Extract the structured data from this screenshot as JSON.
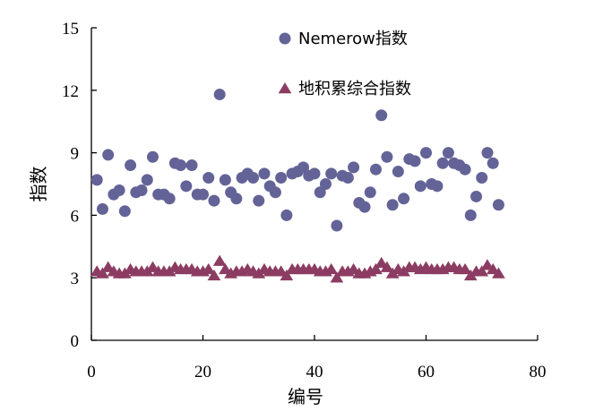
{
  "chart_data": {
    "type": "scatter",
    "xlabel": "编号",
    "ylabel": "指数",
    "xlim": [
      0,
      80
    ],
    "ylim": [
      0,
      15
    ],
    "xticks": [
      0,
      20,
      40,
      60,
      80
    ],
    "yticks": [
      0,
      3,
      6,
      9,
      12,
      15
    ],
    "grid": false,
    "legend_position": "top-right",
    "series": [
      {
        "name": "Nemerow指数",
        "color": "#636397",
        "marker": "circle",
        "x": [
          1,
          2,
          3,
          4,
          5,
          6,
          7,
          8,
          9,
          10,
          11,
          12,
          13,
          14,
          15,
          16,
          17,
          18,
          19,
          20,
          21,
          22,
          23,
          24,
          25,
          26,
          27,
          28,
          29,
          30,
          31,
          32,
          33,
          34,
          35,
          36,
          37,
          38,
          39,
          40,
          41,
          42,
          43,
          44,
          45,
          46,
          47,
          48,
          49,
          50,
          51,
          52,
          53,
          54,
          55,
          56,
          57,
          58,
          59,
          60,
          61,
          62,
          63,
          64,
          65,
          66,
          67,
          68,
          69,
          70,
          71,
          72,
          73
        ],
        "y": [
          7.7,
          6.3,
          8.9,
          7.0,
          7.2,
          6.2,
          8.4,
          7.1,
          7.2,
          7.7,
          8.8,
          7.0,
          7.0,
          6.8,
          8.5,
          8.4,
          7.4,
          8.4,
          7.0,
          7.0,
          7.8,
          6.7,
          11.8,
          7.7,
          7.1,
          6.8,
          7.8,
          8.0,
          7.8,
          6.7,
          8.0,
          7.4,
          7.1,
          7.8,
          6.0,
          8.0,
          8.1,
          8.3,
          7.9,
          8.0,
          7.1,
          7.5,
          8.0,
          5.5,
          7.9,
          7.8,
          8.3,
          6.6,
          6.4,
          7.1,
          8.2,
          10.8,
          8.8,
          6.5,
          8.1,
          6.8,
          8.7,
          8.6,
          7.4,
          9.0,
          7.5,
          7.4,
          8.5,
          9.0,
          8.5,
          8.4,
          8.2,
          6.0,
          6.9,
          7.8,
          9.0,
          8.5,
          6.5
        ]
      },
      {
        "name": "地积累综合指数",
        "color": "#8c3c62",
        "marker": "triangle",
        "x": [
          1,
          2,
          3,
          4,
          5,
          6,
          7,
          8,
          9,
          10,
          11,
          12,
          13,
          14,
          15,
          16,
          17,
          18,
          19,
          20,
          21,
          22,
          23,
          24,
          25,
          26,
          27,
          28,
          29,
          30,
          31,
          32,
          33,
          34,
          35,
          36,
          37,
          38,
          39,
          40,
          41,
          42,
          43,
          44,
          45,
          46,
          47,
          48,
          49,
          50,
          51,
          52,
          53,
          54,
          55,
          56,
          57,
          58,
          59,
          60,
          61,
          62,
          63,
          64,
          65,
          66,
          67,
          68,
          69,
          70,
          71,
          72,
          73
        ],
        "y": [
          3.3,
          3.2,
          3.5,
          3.3,
          3.2,
          3.2,
          3.4,
          3.3,
          3.3,
          3.3,
          3.5,
          3.3,
          3.3,
          3.3,
          3.5,
          3.4,
          3.4,
          3.4,
          3.3,
          3.3,
          3.4,
          3.1,
          3.8,
          3.4,
          3.2,
          3.3,
          3.3,
          3.4,
          3.3,
          3.2,
          3.4,
          3.3,
          3.3,
          3.3,
          3.1,
          3.4,
          3.4,
          3.4,
          3.4,
          3.4,
          3.3,
          3.3,
          3.4,
          3.0,
          3.3,
          3.3,
          3.4,
          3.2,
          3.2,
          3.3,
          3.4,
          3.7,
          3.5,
          3.2,
          3.4,
          3.3,
          3.5,
          3.5,
          3.4,
          3.5,
          3.4,
          3.4,
          3.4,
          3.5,
          3.5,
          3.4,
          3.4,
          3.1,
          3.3,
          3.3,
          3.6,
          3.4,
          3.2
        ]
      }
    ]
  }
}
